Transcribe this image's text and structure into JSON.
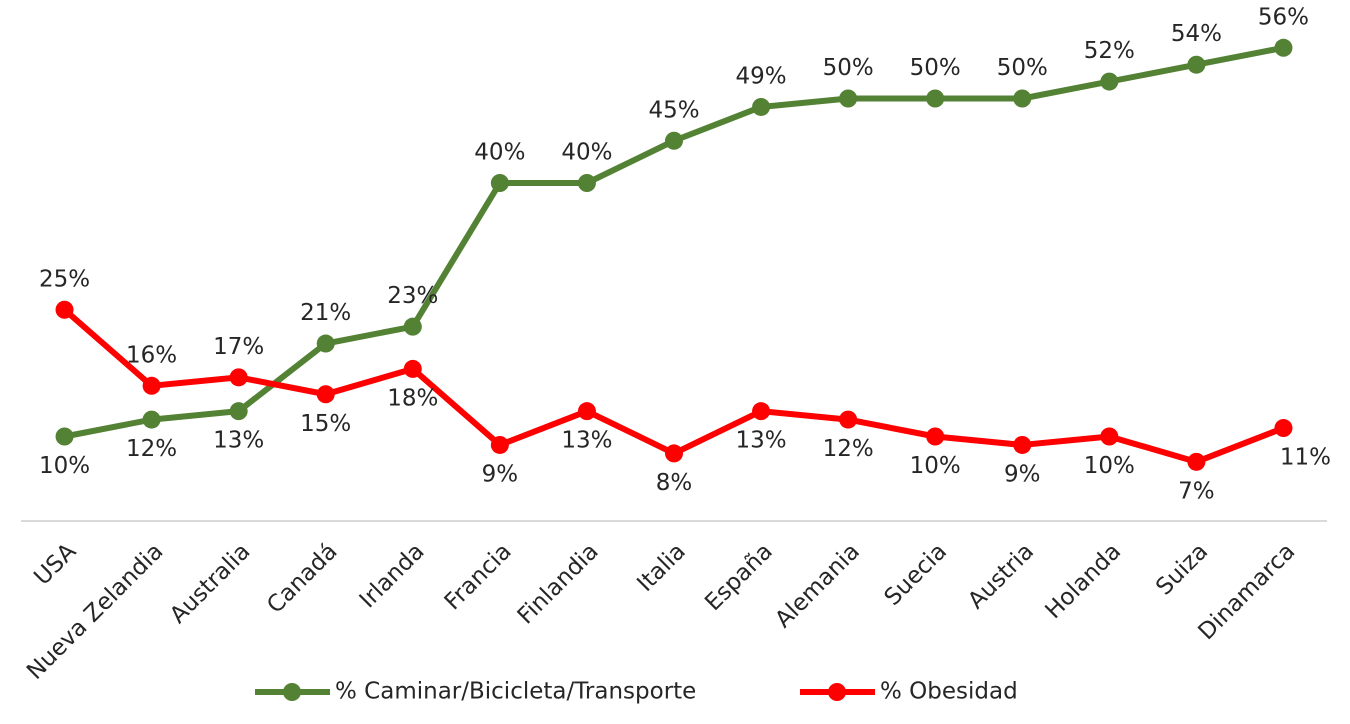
{
  "chart_data": {
    "type": "line",
    "categories": [
      "USA",
      "Nueva Zelandia",
      "Australia",
      "Canadá",
      "Irlanda",
      "Francia",
      "Finlandia",
      "Italia",
      "España",
      "Alemania",
      "Suecia",
      "Austria",
      "Holanda",
      "Suiza",
      "Dinamarca"
    ],
    "series": [
      {
        "name": "% Caminar/Bicicleta/Transporte",
        "color": "#548235",
        "values": [
          10,
          12,
          13,
          21,
          23,
          40,
          40,
          45,
          49,
          50,
          50,
          50,
          52,
          54,
          56
        ],
        "value_labels": [
          "10%",
          "12%",
          "13%",
          "21%",
          "23%",
          "40%",
          "40%",
          "45%",
          "49%",
          "50%",
          "50%",
          "50%",
          "52%",
          "54%",
          "56%"
        ]
      },
      {
        "name": "% Obesidad",
        "color": "#ff0000",
        "values": [
          25,
          16,
          17,
          15,
          18,
          9,
          13,
          8,
          13,
          12,
          10,
          9,
          10,
          7,
          11
        ],
        "value_labels": [
          "25%",
          "16%",
          "17%",
          "15%",
          "18%",
          "9%",
          "13%",
          "8%",
          "13%",
          "12%",
          "10%",
          "9%",
          "10%",
          "7%",
          "11%"
        ]
      }
    ],
    "ylim": [
      0,
      60
    ],
    "legend": "bottom"
  }
}
